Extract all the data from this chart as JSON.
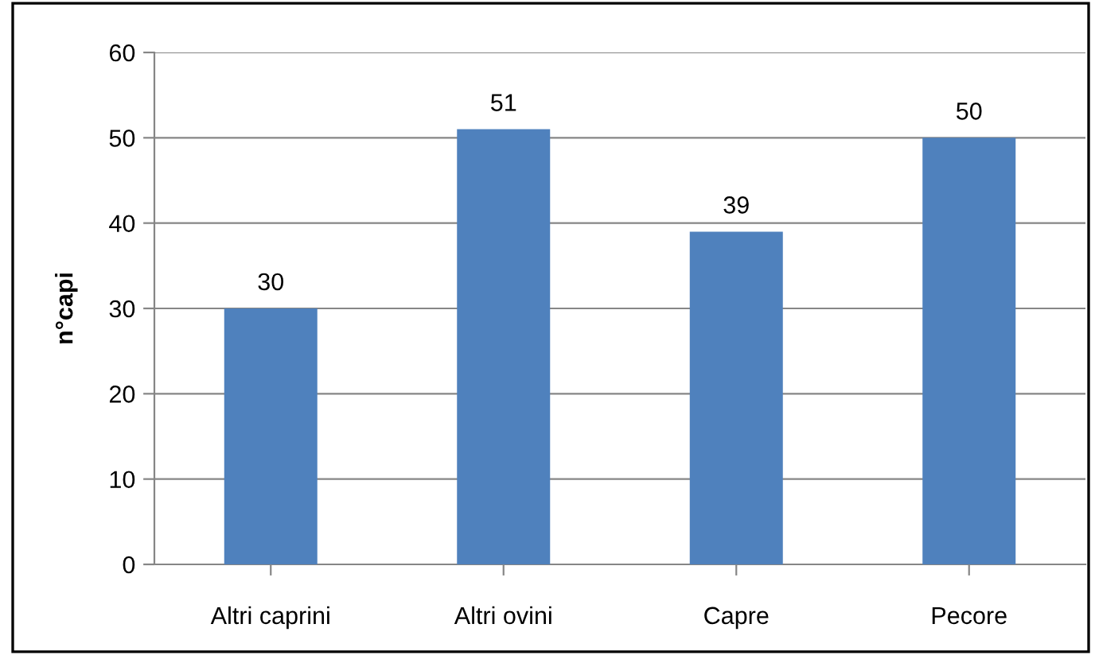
{
  "chart_data": {
    "type": "bar",
    "ylabel": "n°capi",
    "categories": [
      "Altri caprini",
      "Altri ovini",
      "Capre",
      "Pecore"
    ],
    "values": [
      30,
      51,
      39,
      50
    ],
    "color": "#4f81bd",
    "ylim": [
      0,
      60
    ],
    "yticks": [
      0,
      10,
      20,
      30,
      40,
      50,
      60
    ],
    "grid": "y",
    "data_labels": true
  }
}
